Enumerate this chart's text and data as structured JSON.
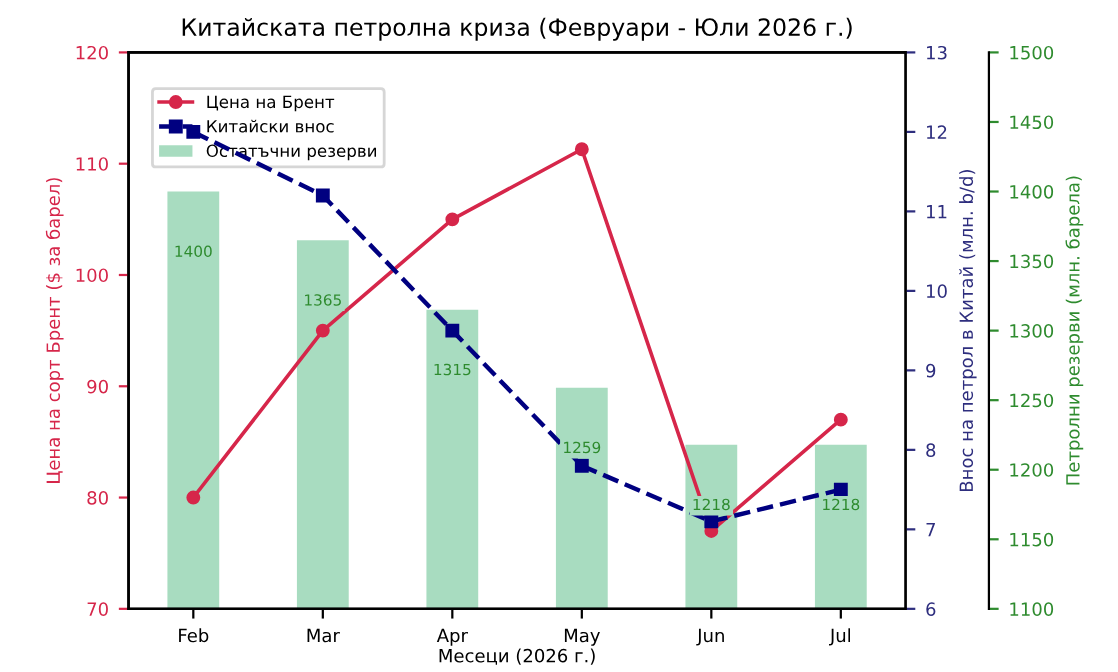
{
  "chart_data": {
    "type": "line",
    "title": "Китайската петролна криза (Февруари - Юли 2026 г.)",
    "xlabel": "Месеци (2026 г.)",
    "ylabel": "Цена на сорт Брент ($ за барел)",
    "y2label": "Внос на петрол в Китай (млн. b/d)",
    "y3label": "Петролни резерви (млн. барела)",
    "categories": [
      "Feb",
      "Mar",
      "Apr",
      "May",
      "Jun",
      "Jul"
    ],
    "series": [
      {
        "name": "Цена на Брент",
        "color": "#d6264a",
        "marker": "circle",
        "line_style": "solid",
        "values": [
          80,
          95,
          105,
          111.3,
          77,
          87
        ]
      },
      {
        "name": "Китайски внос",
        "axis": "y2",
        "color": "#000080",
        "marker": "square",
        "line_style": "dashed",
        "values": [
          12.0,
          11.2,
          9.5,
          7.8,
          7.1,
          7.5
        ]
      },
      {
        "name": "Остатъчни резерви",
        "type": "bar",
        "axis": "y3",
        "color": "#a8dcc0",
        "values": [
          1400,
          1365,
          1315,
          1259,
          1218,
          1218
        ],
        "value_labels": [
          "1400",
          "1365",
          "1315",
          "1259",
          "1218",
          "1218"
        ]
      }
    ],
    "ylim": [
      70,
      120
    ],
    "yticks": [
      70,
      80,
      90,
      100,
      110,
      120
    ],
    "y2lim": [
      6,
      13
    ],
    "y2ticks": [
      6,
      7,
      8,
      9,
      10,
      11,
      12,
      13
    ],
    "y3lim": [
      1100,
      1500
    ],
    "y3ticks": [
      1100,
      1150,
      1200,
      1250,
      1300,
      1350,
      1400,
      1450,
      1500
    ],
    "legend": "top left",
    "grid": false
  }
}
